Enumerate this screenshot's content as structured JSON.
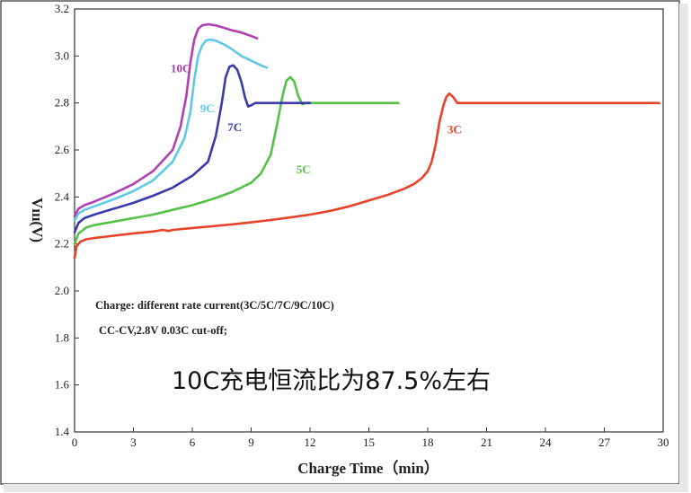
{
  "chart_data": {
    "type": "line",
    "xlabel": "Charge Time（min）",
    "ylabel": "Vııı(V)",
    "xlim": [
      0,
      30
    ],
    "ylim": [
      1.4,
      3.2
    ],
    "xticks": [
      0,
      3,
      6,
      9,
      12,
      15,
      18,
      21,
      24,
      27,
      30
    ],
    "yticks": [
      1.4,
      1.6,
      1.8,
      2.0,
      2.2,
      2.4,
      2.6,
      2.8,
      3.0,
      3.2
    ],
    "grid": false,
    "annotations": [
      "Charge: different rate current(3C/5C/7C/9C/10C)",
      "CC-CV,2.8V 0.03C cut-off;",
      "10C充电恒流比为87.5%左右"
    ],
    "series": [
      {
        "name": "3C",
        "color": "#e8432a",
        "x": [
          0,
          0.1,
          0.3,
          0.6,
          1.0,
          2.0,
          3.0,
          4.0,
          4.5,
          4.8,
          5.0,
          6.0,
          7.0,
          8.0,
          9.0,
          10.0,
          11.0,
          12.0,
          13.0,
          14.0,
          15.0,
          16.0,
          16.8,
          17.3,
          17.7,
          18.0,
          18.2,
          18.4,
          18.6,
          18.8,
          18.95,
          19.1,
          19.3,
          19.5,
          19.7,
          20.0,
          22.0,
          25.0,
          28.0,
          29.8
        ],
        "y": [
          2.14,
          2.19,
          2.21,
          2.22,
          2.225,
          2.235,
          2.245,
          2.253,
          2.26,
          2.255,
          2.26,
          2.268,
          2.275,
          2.283,
          2.292,
          2.302,
          2.313,
          2.325,
          2.34,
          2.36,
          2.385,
          2.41,
          2.435,
          2.455,
          2.48,
          2.51,
          2.55,
          2.62,
          2.72,
          2.79,
          2.825,
          2.84,
          2.825,
          2.8,
          2.8,
          2.8,
          2.8,
          2.8,
          2.8,
          2.8
        ]
      },
      {
        "name": "5C",
        "color": "#55c148",
        "x": [
          0,
          0.2,
          0.6,
          1.0,
          2.0,
          3.0,
          4.0,
          5.0,
          6.0,
          7.0,
          8.0,
          9.0,
          9.5,
          10.0,
          10.3,
          10.6,
          10.8,
          11.0,
          11.2,
          11.4,
          11.6,
          11.8,
          12.0,
          13.0,
          14.5,
          16.5
        ],
        "y": [
          2.2,
          2.245,
          2.27,
          2.28,
          2.295,
          2.31,
          2.325,
          2.345,
          2.365,
          2.39,
          2.42,
          2.46,
          2.5,
          2.58,
          2.7,
          2.83,
          2.895,
          2.91,
          2.89,
          2.83,
          2.795,
          2.8,
          2.8,
          2.8,
          2.8,
          2.8
        ]
      },
      {
        "name": "7C",
        "color": "#3a3aad",
        "x": [
          0,
          0.2,
          0.5,
          1.0,
          2.0,
          3.0,
          4.0,
          5.0,
          6.0,
          6.8,
          7.2,
          7.5,
          7.7,
          7.9,
          8.1,
          8.3,
          8.5,
          8.7,
          8.85,
          9.0,
          9.2,
          9.5,
          10.0,
          11.0,
          12.0
        ],
        "y": [
          2.25,
          2.29,
          2.31,
          2.325,
          2.35,
          2.375,
          2.405,
          2.44,
          2.49,
          2.55,
          2.66,
          2.8,
          2.91,
          2.955,
          2.96,
          2.94,
          2.89,
          2.82,
          2.785,
          2.79,
          2.8,
          2.8,
          2.8,
          2.8,
          2.8
        ]
      },
      {
        "name": "9C",
        "color": "#5ec8e8",
        "x": [
          0,
          0.2,
          0.5,
          1.0,
          2.0,
          3.0,
          4.0,
          5.0,
          5.6,
          5.9,
          6.1,
          6.3,
          6.5,
          6.7,
          6.9,
          7.2,
          7.6,
          8.0,
          8.5,
          9.0,
          9.5,
          9.8
        ],
        "y": [
          2.3,
          2.33,
          2.345,
          2.36,
          2.39,
          2.425,
          2.47,
          2.55,
          2.65,
          2.76,
          2.9,
          3.0,
          3.045,
          3.065,
          3.07,
          3.065,
          3.05,
          3.03,
          3.0,
          2.98,
          2.96,
          2.95
        ]
      },
      {
        "name": "10C",
        "color": "#b040b0",
        "x": [
          0,
          0.2,
          0.5,
          1.0,
          2.0,
          3.0,
          4.0,
          5.0,
          5.4,
          5.7,
          5.9,
          6.1,
          6.3,
          6.5,
          6.8,
          7.2,
          7.6,
          8.0,
          8.5,
          9.0,
          9.3
        ],
        "y": [
          2.32,
          2.35,
          2.365,
          2.38,
          2.415,
          2.455,
          2.51,
          2.6,
          2.7,
          2.83,
          2.97,
          3.07,
          3.115,
          3.13,
          3.135,
          3.13,
          3.12,
          3.11,
          3.1,
          3.085,
          3.075
        ]
      }
    ],
    "series_labels": [
      {
        "text": "10C",
        "color": "#b040b0",
        "x": 4.9,
        "y": 2.93
      },
      {
        "text": "9C",
        "color": "#5ec8e8",
        "x": 6.4,
        "y": 2.76
      },
      {
        "text": "7C",
        "color": "#3a3aad",
        "x": 7.8,
        "y": 2.68
      },
      {
        "text": "5C",
        "color": "#55c148",
        "x": 11.3,
        "y": 2.5
      },
      {
        "text": "3C",
        "color": "#e8432a",
        "x": 19.0,
        "y": 2.67
      }
    ]
  }
}
